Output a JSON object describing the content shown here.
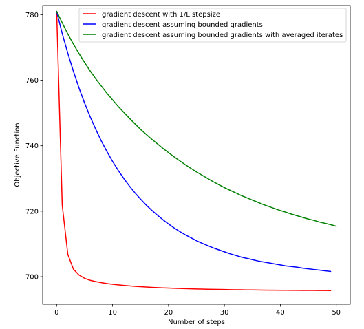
{
  "chart_data": {
    "type": "line",
    "title": "",
    "xlabel": "Number of steps",
    "ylabel": "Objective Function",
    "xlim": [
      -2.5,
      52.5
    ],
    "ylim": [
      691.6,
      782.8
    ],
    "xticks": [
      0,
      10,
      20,
      30,
      40,
      50
    ],
    "yticks": [
      700,
      720,
      740,
      760,
      780
    ],
    "xtick_labels": [
      "0",
      "10",
      "20",
      "30",
      "40",
      "50"
    ],
    "ytick_labels": [
      "700",
      "720",
      "740",
      "760",
      "780"
    ],
    "grid": false,
    "legend_position": "top-right",
    "series": [
      {
        "name": "gradient descent with 1/L stepsize",
        "color": "#ff0000",
        "x": [
          0,
          1,
          2,
          3,
          4,
          5,
          6,
          7,
          8,
          9,
          10,
          11,
          12,
          13,
          14,
          15,
          16,
          17,
          18,
          19,
          20,
          21,
          22,
          23,
          24,
          25,
          26,
          27,
          28,
          29,
          30,
          31,
          32,
          33,
          34,
          35,
          36,
          37,
          38,
          39,
          40,
          41,
          42,
          43,
          44,
          45,
          46,
          47,
          48,
          49
        ],
        "y": [
          781.0,
          721.8,
          706.8,
          702.3,
          700.5,
          699.5,
          698.9,
          698.5,
          698.2,
          697.9,
          697.7,
          697.5,
          697.35,
          697.2,
          697.05,
          696.95,
          696.85,
          696.75,
          696.68,
          696.6,
          696.53,
          696.47,
          696.41,
          696.36,
          696.31,
          696.26,
          696.22,
          696.18,
          696.14,
          696.11,
          696.08,
          696.05,
          696.02,
          696.0,
          695.97,
          695.95,
          695.93,
          695.91,
          695.89,
          695.88,
          695.86,
          695.85,
          695.84,
          695.82,
          695.81,
          695.8,
          695.79,
          695.78,
          695.77,
          695.76
        ]
      },
      {
        "name": "gradient descent assuming bounded gradients",
        "color": "#0000ff",
        "x": [
          0,
          1,
          2,
          3,
          4,
          5,
          6,
          7,
          8,
          9,
          10,
          11,
          12,
          13,
          14,
          15,
          16,
          17,
          18,
          19,
          20,
          21,
          22,
          23,
          24,
          25,
          26,
          27,
          28,
          29,
          30,
          31,
          32,
          33,
          34,
          35,
          36,
          37,
          38,
          39,
          40,
          41,
          42,
          43,
          44,
          45,
          46,
          47,
          48,
          49
        ],
        "y": [
          781.0,
          774.2,
          768.2,
          762.7,
          757.6,
          753.0,
          748.8,
          745.0,
          741.4,
          738.2,
          735.2,
          732.5,
          730.0,
          727.7,
          725.6,
          723.7,
          721.9,
          720.3,
          718.8,
          717.4,
          716.1,
          714.9,
          713.8,
          712.8,
          711.9,
          711.0,
          710.2,
          709.5,
          708.8,
          708.2,
          707.6,
          707.0,
          706.5,
          706.0,
          705.6,
          705.2,
          704.8,
          704.5,
          704.2,
          703.9,
          703.6,
          703.3,
          703.1,
          702.9,
          702.6,
          702.4,
          702.2,
          702.0,
          701.8,
          701.6
        ]
      },
      {
        "name": "gradient descent assuming bounded gradients with averaged iterates",
        "color": "#008000",
        "x": [
          0,
          1,
          2,
          3,
          4,
          5,
          6,
          7,
          8,
          9,
          10,
          11,
          12,
          13,
          14,
          15,
          16,
          17,
          18,
          19,
          20,
          21,
          22,
          23,
          24,
          25,
          26,
          27,
          28,
          29,
          30,
          31,
          32,
          33,
          34,
          35,
          36,
          37,
          38,
          39,
          40,
          41,
          42,
          43,
          44,
          45,
          46,
          47,
          48,
          49,
          50
        ],
        "y": [
          781.0,
          777.5,
          774.1,
          771.0,
          768.1,
          765.4,
          762.8,
          760.4,
          758.2,
          756.0,
          754.0,
          752.0,
          750.2,
          748.4,
          746.7,
          745.0,
          743.5,
          742.0,
          740.6,
          739.2,
          737.9,
          736.6,
          735.4,
          734.2,
          733.1,
          732.0,
          731.0,
          730.0,
          729.0,
          728.1,
          727.2,
          726.4,
          725.6,
          724.8,
          724.1,
          723.4,
          722.7,
          722.0,
          721.4,
          720.8,
          720.2,
          719.7,
          719.1,
          718.6,
          718.1,
          717.6,
          717.2,
          716.7,
          716.3,
          715.9,
          715.4
        ]
      }
    ]
  }
}
